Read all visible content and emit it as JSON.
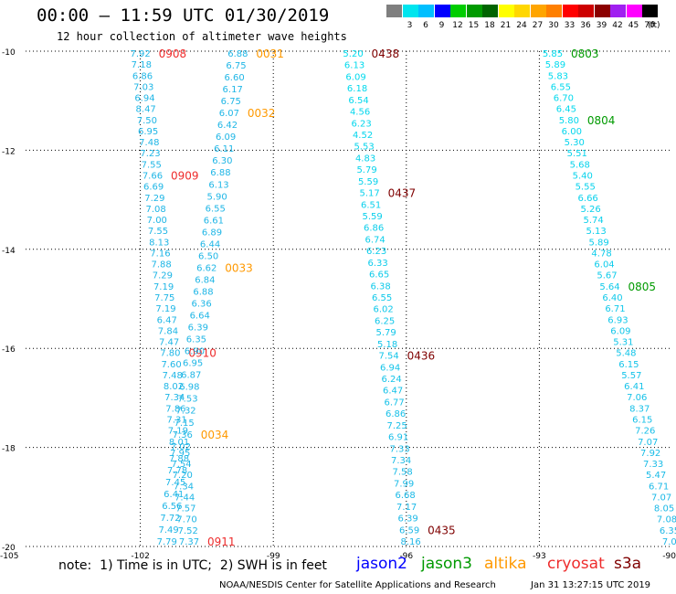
{
  "header": {
    "title": "00:00 – 11:59 UTC 01/30/2019",
    "subtitle": "12 hour collection of altimeter wave heights"
  },
  "legend": {
    "unit": "(ft)",
    "bins": [
      {
        "label": "",
        "color": "#7f7f7f"
      },
      {
        "label": "3",
        "color": "#00e5ee"
      },
      {
        "label": "6",
        "color": "#00bfff"
      },
      {
        "label": "9",
        "color": "#0000ff"
      },
      {
        "label": "12",
        "color": "#00cd00"
      },
      {
        "label": "15",
        "color": "#009a00"
      },
      {
        "label": "18",
        "color": "#006400"
      },
      {
        "label": "21",
        "color": "#ffff00"
      },
      {
        "label": "24",
        "color": "#ffd700"
      },
      {
        "label": "27",
        "color": "#ffa500"
      },
      {
        "label": "30",
        "color": "#ff7f00"
      },
      {
        "label": "33",
        "color": "#ff0000"
      },
      {
        "label": "36",
        "color": "#cd0000"
      },
      {
        "label": "39",
        "color": "#8b0000"
      },
      {
        "label": "42",
        "color": "#a020f0"
      },
      {
        "label": "45",
        "color": "#ff00ff"
      },
      {
        "label": "70",
        "color": "#000000"
      }
    ]
  },
  "map_data": {
    "lon_range": [
      -105,
      -90
    ],
    "lat_range": [
      -20,
      -10
    ],
    "lon_labels": [
      "-105",
      "-102",
      "-99",
      "-96",
      "-93",
      "-90"
    ],
    "lat_labels": [
      "-10",
      "-12",
      "-14",
      "-16",
      "-18",
      "-20"
    ],
    "passes": [
      {
        "satellite": "cryosat",
        "color": "#ee2c2c",
        "lon_start": -102.0,
        "lon_end": -100.9,
        "color_start": "#1fb6e6",
        "color_end": "#1fb6e6",
        "values": [
          "7.92",
          "7.18",
          "6.86",
          "7.03",
          "6.94",
          "8.47",
          "7.50",
          "6.95",
          "7.48",
          "7.23",
          "7.55",
          "7.66",
          "6.69",
          "7.29",
          "7.08",
          "7.00",
          "7.55",
          "8.13",
          "7.16",
          "7.88",
          "7.29",
          "7.19",
          "7.75",
          "7.19",
          "6.47",
          "7.84",
          "7.47",
          "7.80",
          "7.60",
          "7.48",
          "8.02",
          "7.34",
          "7.86",
          "7.31",
          "7.19",
          "8.01",
          "7.95",
          "7.54",
          "7.20",
          "7.34",
          "7.44",
          "7.57",
          "7.70",
          "7.52",
          "7.37"
        ],
        "times": [
          {
            "label": "0908",
            "index": 0
          },
          {
            "label": "0909",
            "index": 11
          },
          {
            "label": "0910",
            "index": 27
          },
          {
            "label": "0911",
            "index": 44
          }
        ]
      },
      {
        "satellite": "altika",
        "color": "#ff9900",
        "lon_start": -99.8,
        "lon_end": -101.4,
        "color_start": "#1fb6e6",
        "color_end": "#1fb6e6",
        "values": [
          "6.88",
          "6.75",
          "6.60",
          "6.17",
          "6.75",
          "6.07",
          "6.42",
          "6.09",
          "6.11",
          "6.30",
          "6.88",
          "6.13",
          "5.90",
          "6.55",
          "6.61",
          "6.89",
          "6.44",
          "6.50",
          "6.62",
          "6.84",
          "6.88",
          "6.36",
          "6.64",
          "6.39",
          "6.35",
          "6.90",
          "6.95",
          "6.87",
          "6.98",
          "7.53",
          "7.32",
          "7.15",
          "7.36",
          "7.02",
          "7.88",
          "7.78",
          "7.45",
          "6.41",
          "6.56",
          "7.72",
          "7.49",
          "7.79"
        ],
        "times": [
          {
            "label": "0031",
            "index": 0
          },
          {
            "label": "0032",
            "index": 5
          },
          {
            "label": "0033",
            "index": 18
          },
          {
            "label": "0034",
            "index": 32
          }
        ]
      },
      {
        "satellite": "s3a",
        "color": "#7f0000",
        "lon_start": -97.2,
        "lon_end": -95.9,
        "color_start": "#00dcee",
        "color_end": "#1fb6e6",
        "values": [
          "5.20",
          "6.13",
          "6.09",
          "6.18",
          "6.54",
          "4.56",
          "6.23",
          "4.52",
          "5.53",
          "4.83",
          "5.79",
          "5.59",
          "5.17",
          "6.51",
          "5.59",
          "6.86",
          "6.74",
          "6.23",
          "6.33",
          "6.65",
          "6.38",
          "6.55",
          "6.02",
          "6.25",
          "5.79",
          "5.18",
          "7.54",
          "6.94",
          "6.24",
          "6.47",
          "6.77",
          "6.86",
          "7.25",
          "6.91",
          "7.33",
          "7.34",
          "7.58",
          "7.99",
          "6.68",
          "7.17",
          "6.39",
          "6.59",
          "8.16"
        ],
        "times": [
          {
            "label": "0438",
            "index": 0
          },
          {
            "label": "0437",
            "index": 12
          },
          {
            "label": "0436",
            "index": 26
          },
          {
            "label": "0435",
            "index": 41
          }
        ]
      },
      {
        "satellite": "jason3",
        "color": "#009a00",
        "lon_start": -92.7,
        "lon_end": -90.0,
        "color_start": "#00dcee",
        "color_end": "#1fb6e6",
        "values": [
          "5.85",
          "5.89",
          "5.83",
          "6.55",
          "6.70",
          "6.45",
          "5.80",
          "6.00",
          "5.30",
          "5.51",
          "5.68",
          "5.40",
          "5.55",
          "6.66",
          "5.26",
          "5.74",
          "5.13",
          "5.89",
          "4.78",
          "6.04",
          "5.67",
          "5.64",
          "6.40",
          "6.71",
          "6.93",
          "6.09",
          "5.31",
          "5.48",
          "6.15",
          "5.57",
          "6.41",
          "7.06",
          "8.37",
          "6.15",
          "7.26",
          "7.07",
          "7.92",
          "7.33",
          "5.47",
          "6.71",
          "7.07",
          "8.05",
          "7.08",
          "6.35",
          "7.04"
        ],
        "times": [
          {
            "label": "0803",
            "index": 0
          },
          {
            "label": "0804",
            "index": 6
          },
          {
            "label": "0805",
            "index": 21
          }
        ]
      }
    ]
  },
  "footer": {
    "note": "note:  1) Time is in UTC;  2) SWH is in feet",
    "satellites": [
      {
        "name": "jason2",
        "color": "#0000ff"
      },
      {
        "name": "jason3",
        "color": "#009a00"
      },
      {
        "name": "altika",
        "color": "#ff9900"
      },
      {
        "name": "cryosat",
        "color": "#ee2c2c"
      },
      {
        "name": "s3a",
        "color": "#7f0000"
      }
    ],
    "credit": "NOAA/NESDIS Center for Satellite Applications and Research",
    "timestamp": "Jan 31 13:27:15 UTC 2019"
  }
}
